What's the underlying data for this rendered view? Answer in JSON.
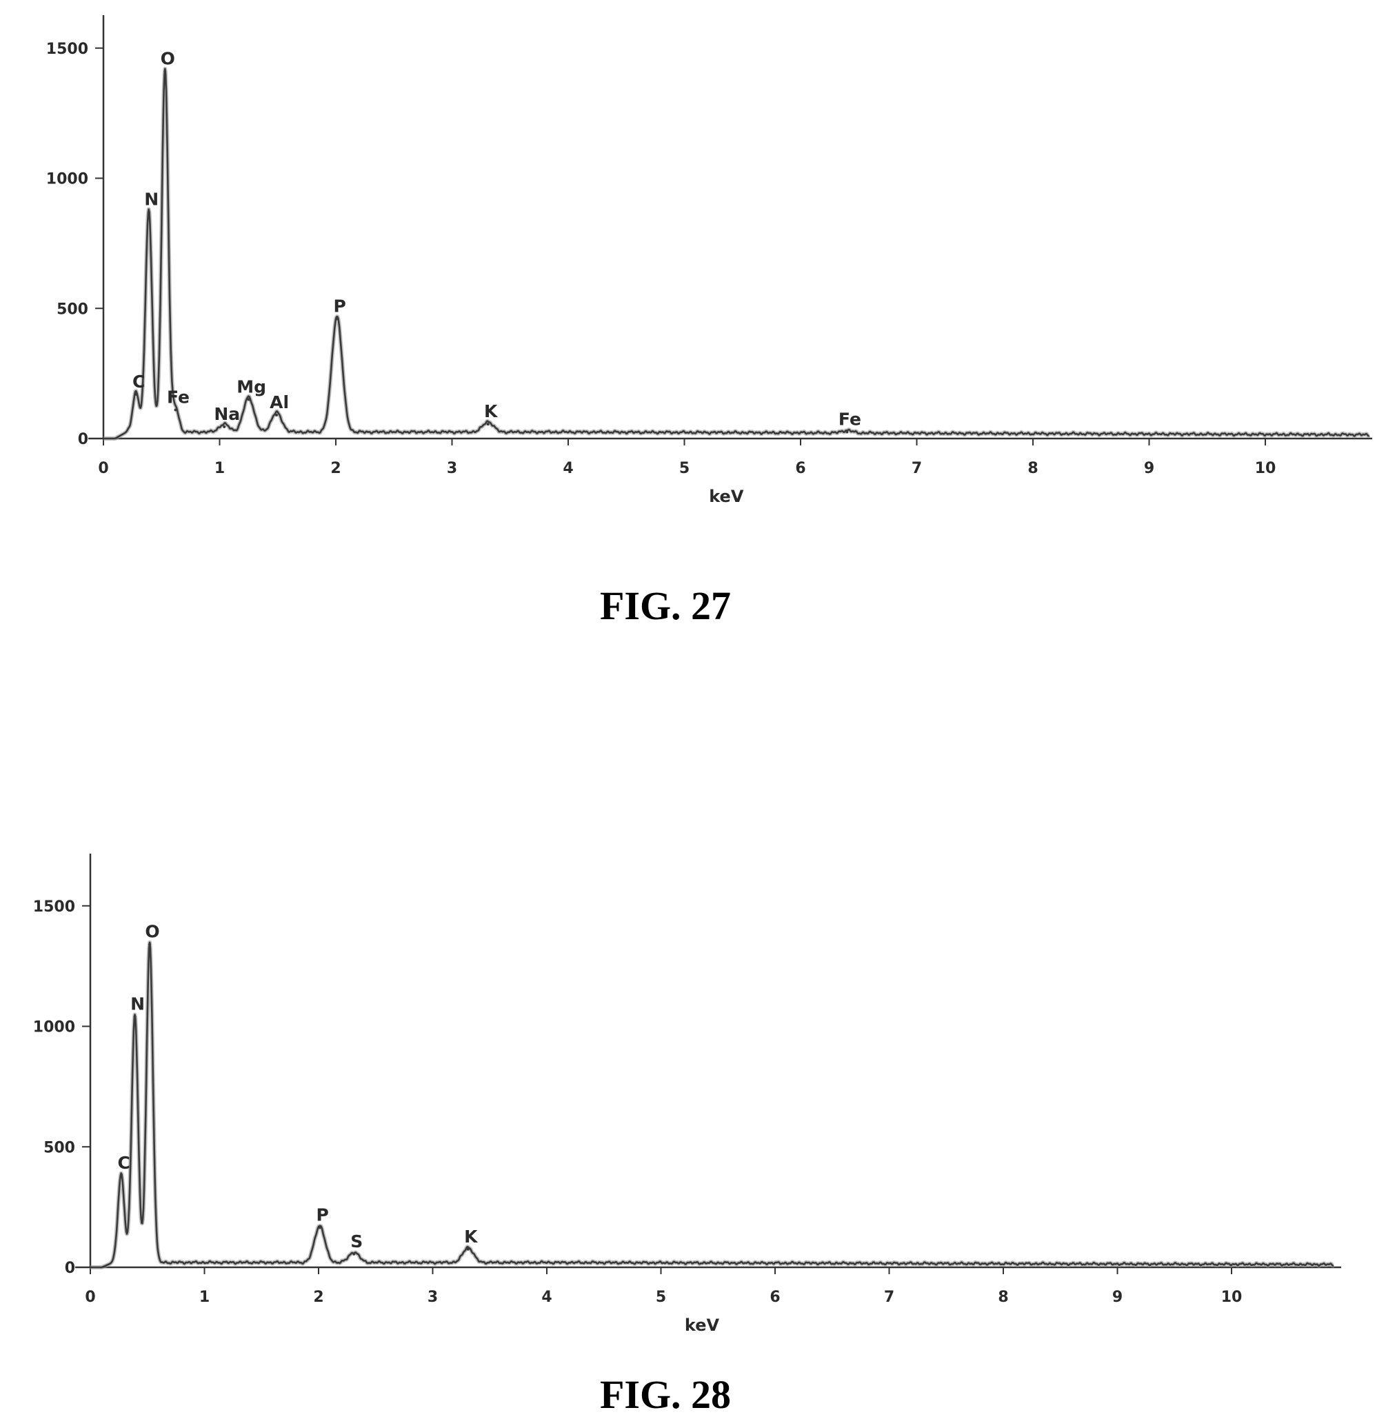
{
  "chart_data": [
    {
      "type": "line",
      "caption": "FIG. 27",
      "xlabel": "keV",
      "ylabel": "",
      "xlim": [
        0,
        10.9
      ],
      "ylim": [
        0,
        1600
      ],
      "xticks": [
        "0",
        "1",
        "2",
        "3",
        "4",
        "5",
        "6",
        "7",
        "8",
        "9",
        "10"
      ],
      "yticks": [
        "0",
        "500",
        "1000",
        "1500"
      ],
      "grid": false,
      "baseline": 25,
      "peaks": [
        {
          "label": "C",
          "x": 0.28,
          "y": 170
        },
        {
          "label": "N",
          "x": 0.39,
          "y": 870
        },
        {
          "label": "O",
          "x": 0.53,
          "y": 1410
        },
        {
          "label": "Fe",
          "x": 0.62,
          "y": 110
        },
        {
          "label": "Na",
          "x": 1.04,
          "y": 45
        },
        {
          "label": "Mg",
          "x": 1.25,
          "y": 150
        },
        {
          "label": "Al",
          "x": 1.49,
          "y": 90
        },
        {
          "label": "P",
          "x": 2.01,
          "y": 460
        },
        {
          "label": "K",
          "x": 3.31,
          "y": 55
        },
        {
          "label": "Fe",
          "x": 6.4,
          "y": 25
        }
      ]
    },
    {
      "type": "line",
      "caption": "FIG. 28",
      "xlabel": "keV",
      "ylabel": "",
      "xlim": [
        0,
        10.9
      ],
      "ylim": [
        0,
        1700
      ],
      "xticks": [
        "0",
        "1",
        "2",
        "3",
        "4",
        "5",
        "6",
        "7",
        "8",
        "9",
        "10"
      ],
      "yticks": [
        "0",
        "500",
        "1000",
        "1500"
      ],
      "grid": false,
      "baseline": 20,
      "peaks": [
        {
          "label": "C",
          "x": 0.27,
          "y": 380
        },
        {
          "label": "N",
          "x": 0.39,
          "y": 1040
        },
        {
          "label": "O",
          "x": 0.52,
          "y": 1340
        },
        {
          "label": "P",
          "x": 2.01,
          "y": 165
        },
        {
          "label": "S",
          "x": 2.31,
          "y": 55
        },
        {
          "label": "K",
          "x": 3.31,
          "y": 75
        }
      ]
    }
  ]
}
